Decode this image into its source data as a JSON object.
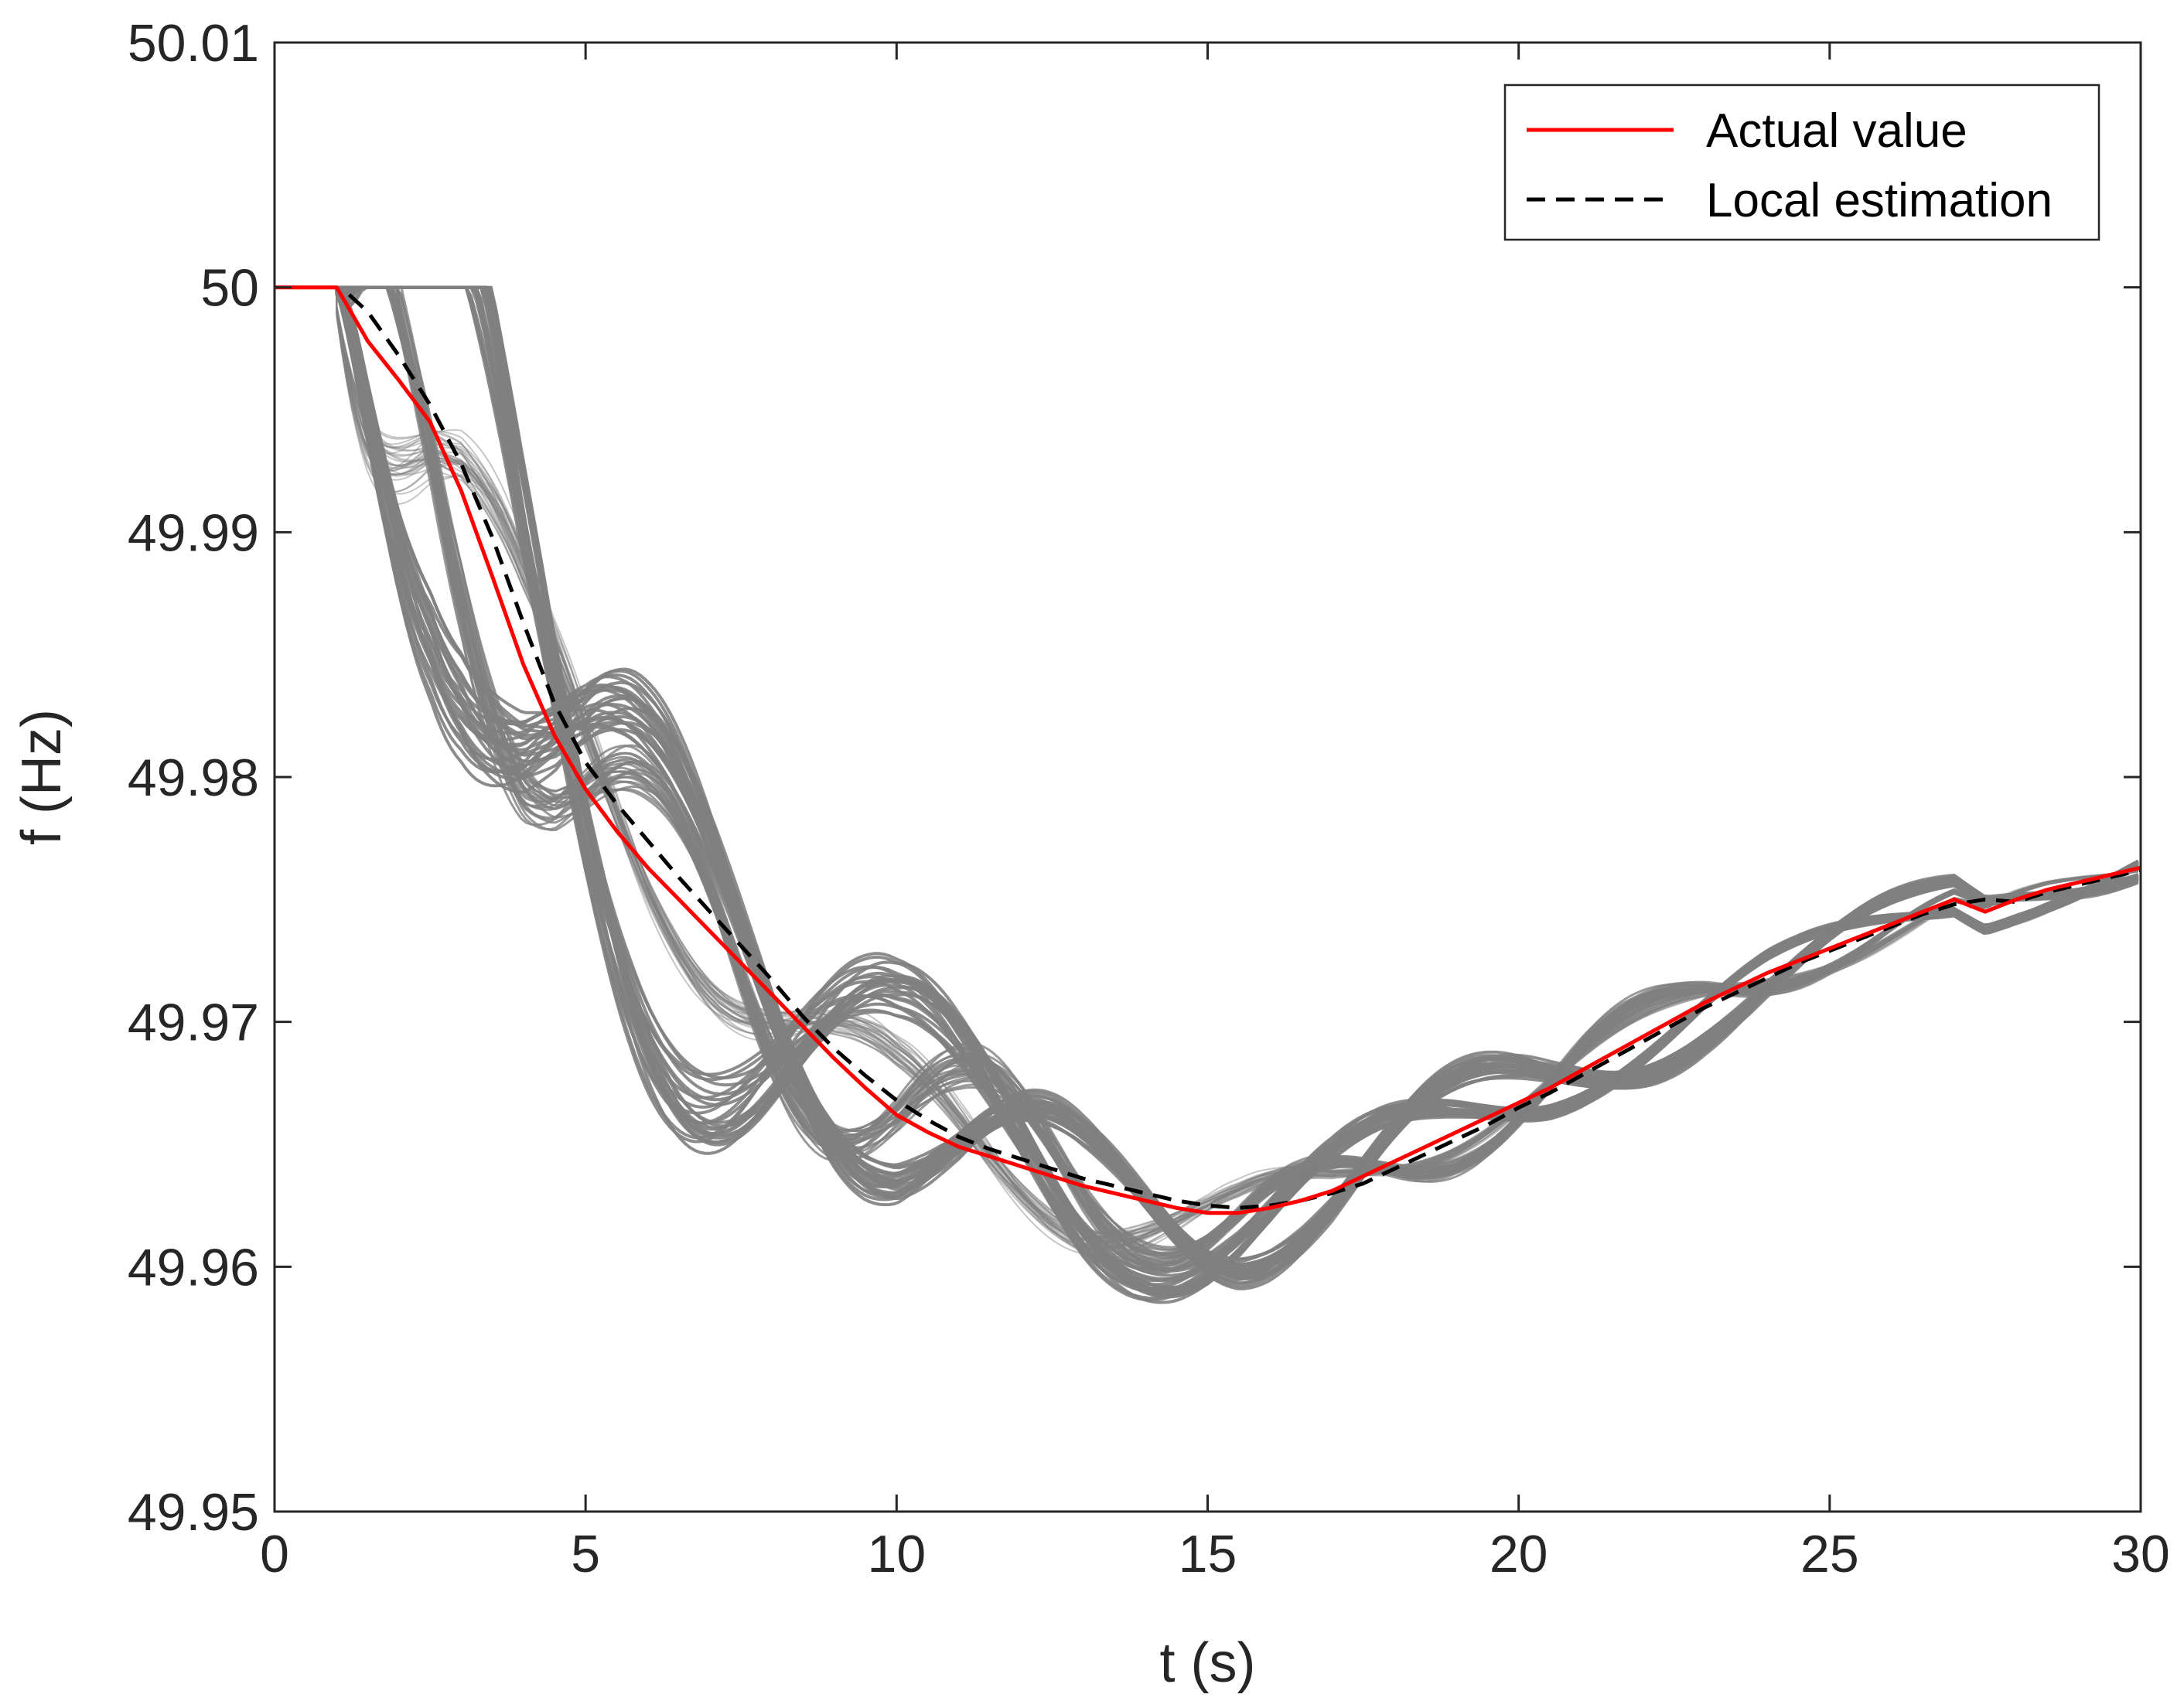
{
  "chart_data": {
    "type": "line",
    "title": "",
    "xlabel": "t (s)",
    "ylabel": "f (Hz)",
    "xlim": [
      0,
      30
    ],
    "ylim": [
      49.95,
      50.01
    ],
    "xticks": [
      "0",
      "5",
      "10",
      "15",
      "20",
      "25",
      "30"
    ],
    "yticks": [
      "49.95",
      "49.96",
      "49.97",
      "49.98",
      "49.99",
      "50",
      "50.01"
    ],
    "grid": false,
    "legend_position": "top-right",
    "colors": {
      "actual": "#ff0000",
      "estimation": "#000000",
      "ensemble": "#808080",
      "axis": "#262626"
    },
    "series": [
      {
        "name": "Actual value",
        "style": "solid",
        "x": [
          0,
          1,
          1.5,
          2,
          2.5,
          3,
          3.5,
          4,
          4.5,
          5,
          5.5,
          6,
          6.5,
          7,
          7.5,
          8,
          8.5,
          9,
          9.5,
          10,
          10.5,
          11,
          11.5,
          12,
          12.5,
          13,
          13.5,
          14,
          14.5,
          15,
          15.5,
          16,
          16.5,
          17,
          17.5,
          18,
          18.5,
          19,
          19.5,
          20,
          20.5,
          21,
          21.5,
          22,
          22.5,
          23,
          23.5,
          24,
          24.5,
          25,
          25.5,
          26,
          26.5,
          27,
          27.5,
          28,
          28.5,
          29,
          29.5,
          30
        ],
        "y": [
          50.0,
          50.0,
          49.9978,
          49.9962,
          49.9945,
          49.9917,
          49.9882,
          49.9846,
          49.9817,
          49.9795,
          49.9778,
          49.9763,
          49.975,
          49.9737,
          49.9724,
          49.9711,
          49.9698,
          49.9685,
          49.9673,
          49.9662,
          49.9655,
          49.9649,
          49.9645,
          49.9641,
          49.9637,
          49.9633,
          49.963,
          49.9627,
          49.9624,
          49.9622,
          49.9622,
          49.9624,
          49.9627,
          49.9631,
          49.9637,
          49.9643,
          49.9649,
          49.9655,
          49.9661,
          49.9667,
          49.9673,
          49.968,
          49.9687,
          49.9694,
          49.9701,
          49.9708,
          49.9714,
          49.972,
          49.9725,
          49.973,
          49.9735,
          49.974,
          49.9745,
          49.975,
          49.9745,
          49.975,
          49.9754,
          49.9757,
          49.976,
          49.9763
        ]
      },
      {
        "name": "Local estimation",
        "style": "dashed",
        "x": [
          1.2,
          1.5,
          2,
          2.5,
          3,
          3.5,
          4,
          4.5,
          5,
          5.5,
          6,
          6.5,
          7,
          7.5,
          8,
          8.5,
          9,
          9.5,
          10,
          10.5,
          11,
          11.5,
          12,
          12.5,
          13,
          13.5,
          14,
          14.5,
          15,
          15.5,
          16,
          16.5,
          17,
          17.5,
          18,
          18.5,
          19,
          19.5,
          20,
          20.5,
          21,
          21.5,
          22,
          22.5,
          23,
          23.5,
          24,
          24.5,
          25,
          25.5,
          26,
          26.5,
          27,
          27.5,
          28,
          28.5,
          29,
          29.5,
          30
        ],
        "y": [
          49.9997,
          49.999,
          49.9972,
          49.9952,
          49.9928,
          49.9898,
          49.9863,
          49.983,
          49.9806,
          49.9789,
          49.9774,
          49.9759,
          49.9745,
          49.9731,
          49.9717,
          49.9702,
          49.9689,
          49.9678,
          49.9668,
          49.966,
          49.9653,
          49.9648,
          49.9644,
          49.964,
          49.9636,
          49.9633,
          49.963,
          49.9627,
          49.9625,
          49.9624,
          49.9625,
          49.9627,
          49.963,
          49.9634,
          49.964,
          49.9646,
          49.9652,
          49.9658,
          49.9665,
          49.9671,
          49.9678,
          49.9685,
          49.9692,
          49.9699,
          49.9706,
          49.9712,
          49.9718,
          49.9724,
          49.9729,
          49.9734,
          49.9739,
          49.9744,
          49.9748,
          49.975,
          49.9749,
          49.9753,
          49.9756,
          49.9759,
          49.9762
        ]
      }
    ]
  }
}
